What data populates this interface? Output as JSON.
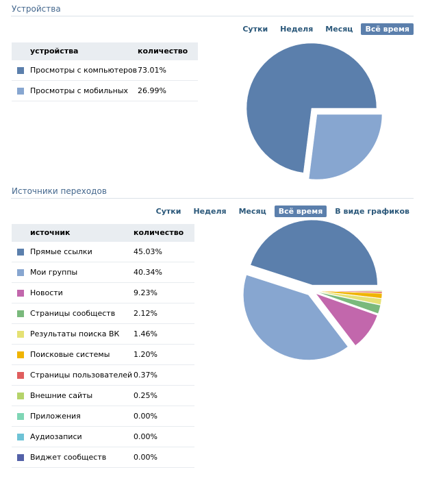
{
  "chart_data": [
    {
      "type": "pie",
      "title": "Устройства",
      "tabs": [
        "Сутки",
        "Неделя",
        "Месяц",
        "Всё время"
      ],
      "active_tab": 3,
      "columns": [
        "устройства",
        "количество"
      ],
      "categories": [
        "Просмотры с компьютеров",
        "Просмотры с мобильных"
      ],
      "values": [
        73.01,
        26.99
      ],
      "value_labels": [
        "73.01%",
        "26.99%"
      ],
      "colors": [
        "#5b7fac",
        "#87a6d0"
      ]
    },
    {
      "type": "pie",
      "title": "Источники переходов",
      "tabs": [
        "Сутки",
        "Неделя",
        "Месяц",
        "Всё время",
        "В виде графиков"
      ],
      "active_tab": 3,
      "columns": [
        "источник",
        "количество"
      ],
      "categories": [
        "Прямые ссылки",
        "Мои группы",
        "Новости",
        "Страницы сообществ",
        "Результаты поиска ВК",
        "Поисковые системы",
        "Страницы пользователей",
        "Внешние сайты",
        "Приложения",
        "Аудиозаписи",
        "Виджет сообществ"
      ],
      "values": [
        45.03,
        40.34,
        9.23,
        2.12,
        1.46,
        1.2,
        0.37,
        0.25,
        0,
        0,
        0
      ],
      "value_labels": [
        "45.03%",
        "40.34%",
        "9.23%",
        "2.12%",
        "1.46%",
        "1.20%",
        "0.37%",
        "0.25%",
        "0.00%",
        "0.00%",
        "0.00%"
      ],
      "colors": [
        "#5b7fac",
        "#87a6d0",
        "#c267ac",
        "#7ab97c",
        "#e5e174",
        "#f0b400",
        "#e05e5e",
        "#b5d36a",
        "#7fd6b5",
        "#6ec3d6",
        "#5361a8"
      ]
    }
  ]
}
